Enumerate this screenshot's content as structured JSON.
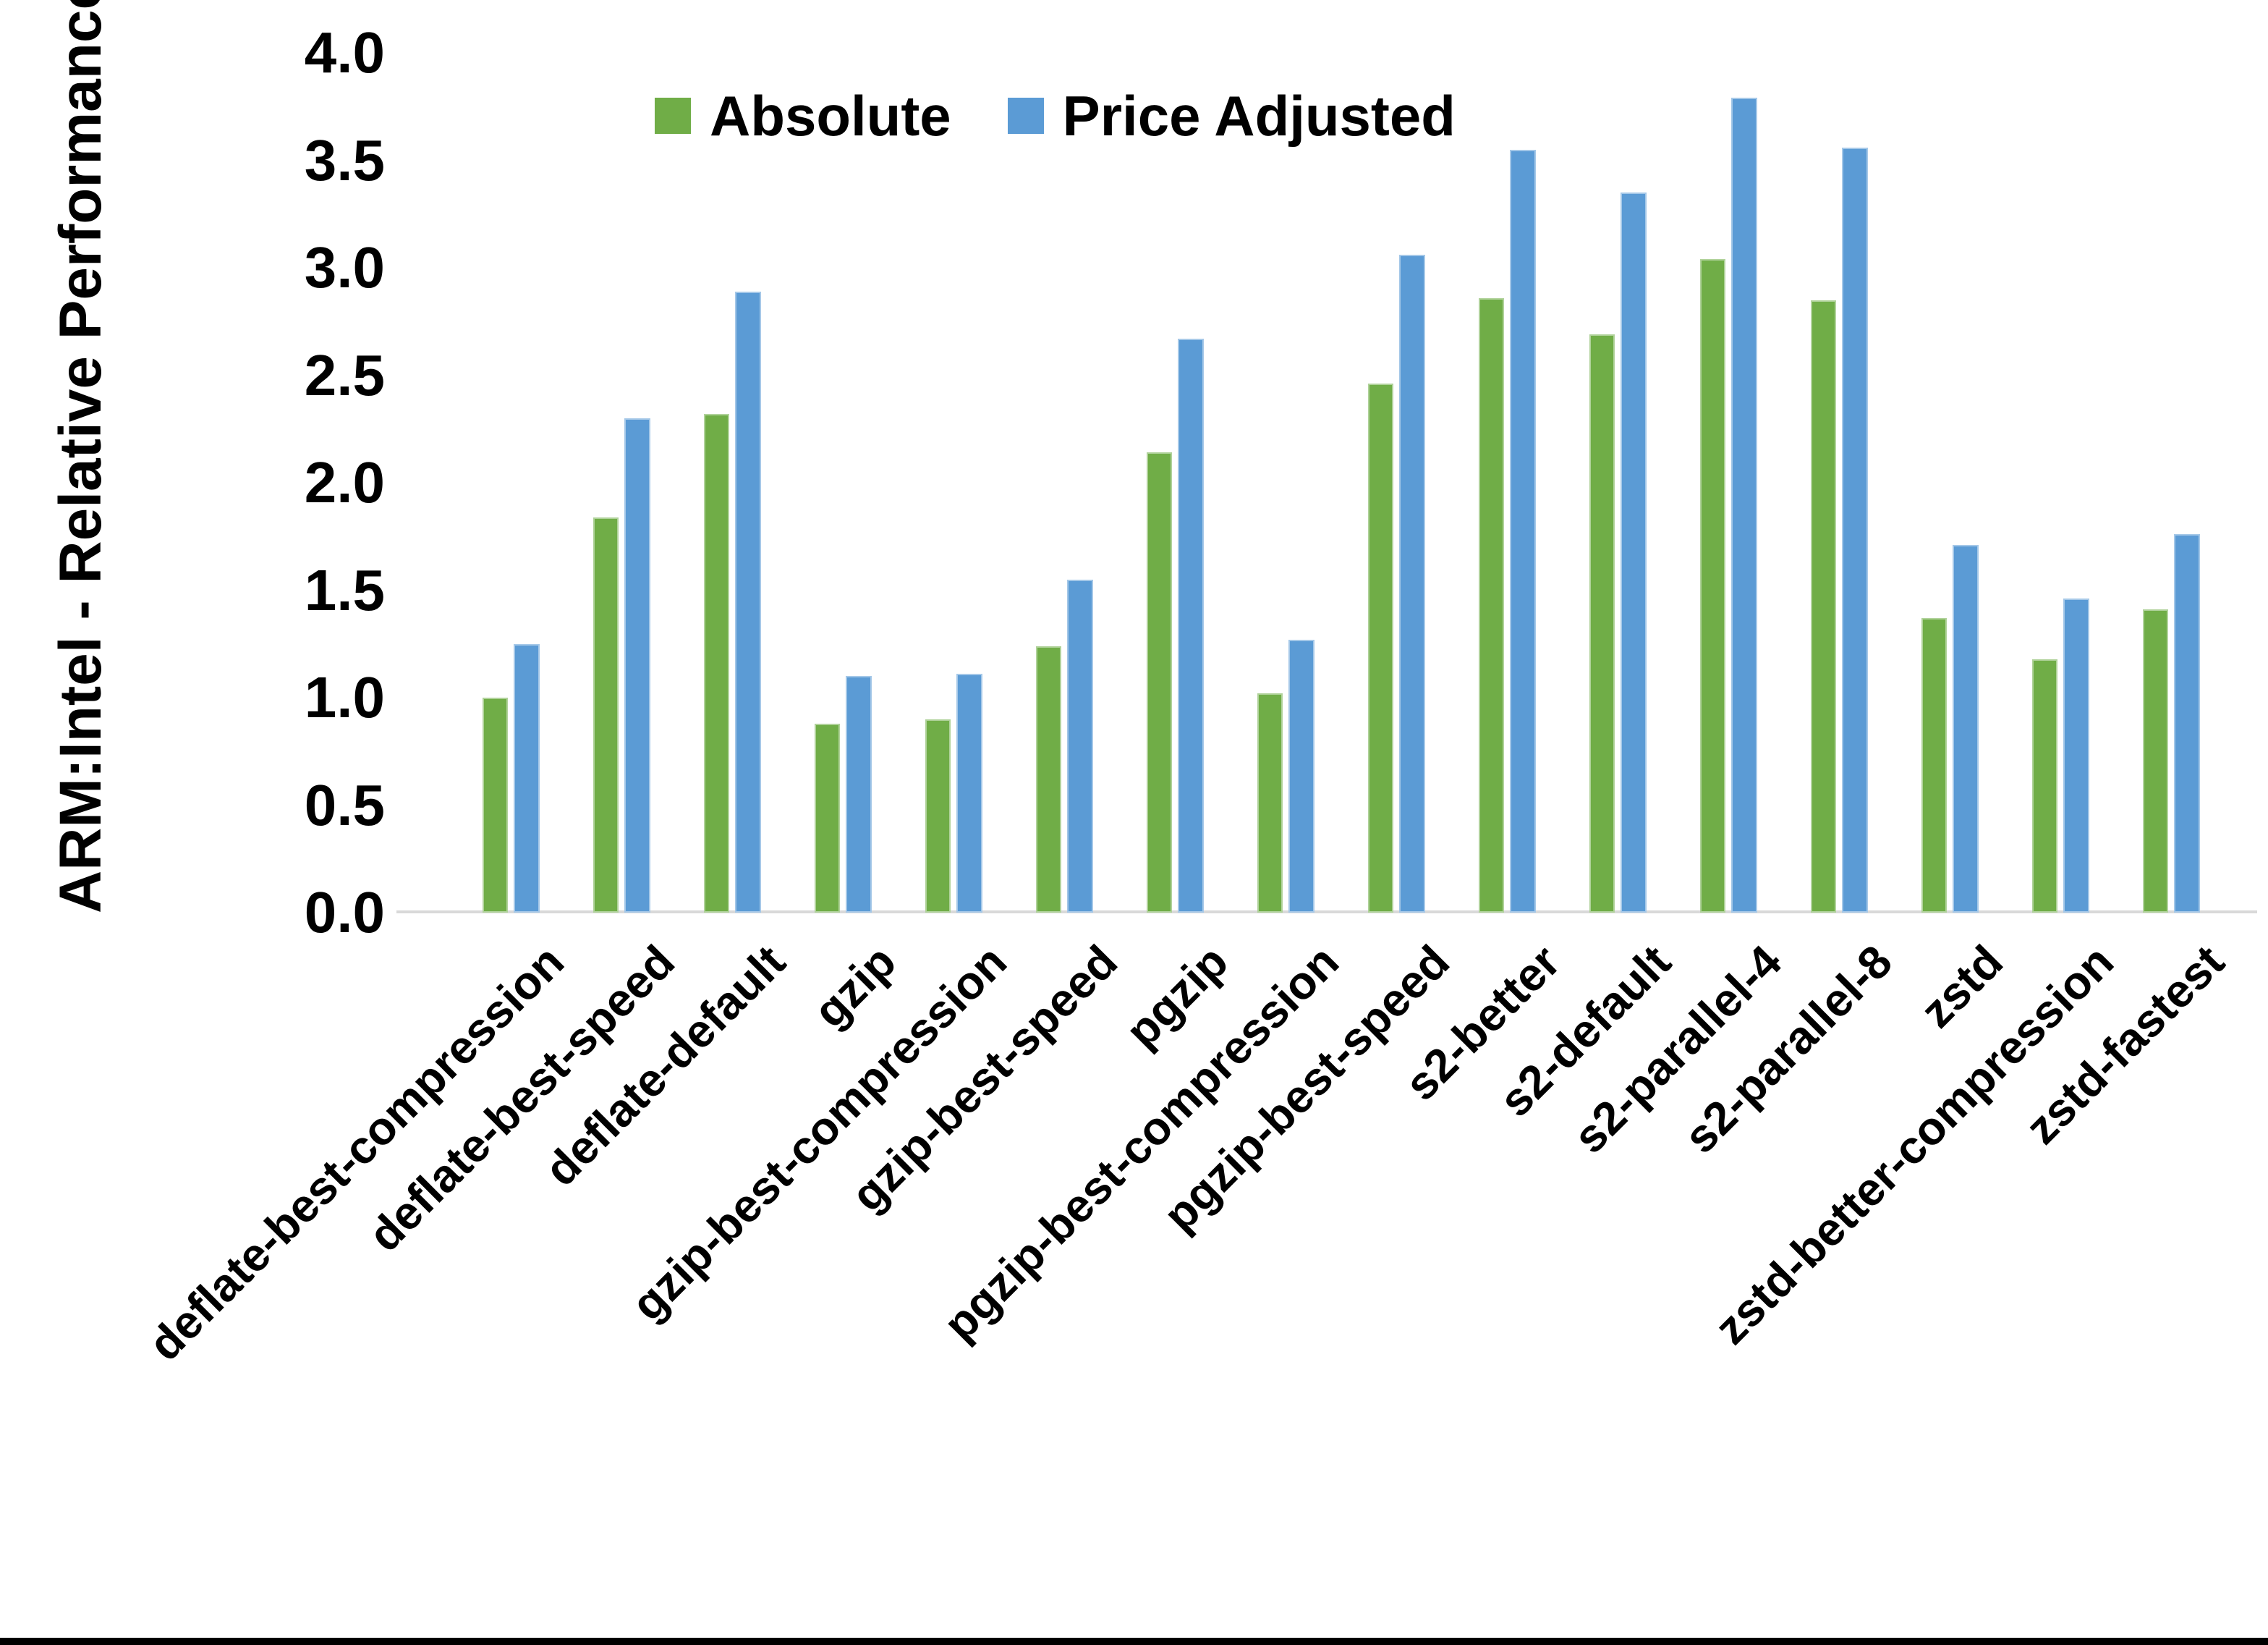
{
  "y_axis": {
    "title": "ARM:Intel - Relative Performance",
    "tick_labels": [
      "0.0",
      "0.5",
      "1.0",
      "1.5",
      "2.0",
      "2.5",
      "3.0",
      "3.5",
      "4.0"
    ]
  },
  "colors": {
    "absolute_green": "#70AD47",
    "price_adjusted_blue": "#5B9BD5",
    "axis_line_gray": "#D9D9D9",
    "text_black": "#000000",
    "bottom_border_black": "#000000"
  },
  "chart_data": {
    "type": "bar",
    "title": "",
    "xlabel": "",
    "ylabel": "ARM:Intel - Relative Performance",
    "ylim": [
      0.0,
      4.0
    ],
    "ytick_step": 0.5,
    "grid": false,
    "legend_position": "top",
    "categories": [
      "deflate-best-compression",
      "deflate-best-speed",
      "deflate-default",
      "gzip",
      "gzip-best-compression",
      "gzip-best-speed",
      "pgzip",
      "pgzip-best-compression",
      "pgzip-best-speed",
      "s2-better",
      "s2-default",
      "s2-parallel-4",
      "s2-parallel-8",
      "zstd",
      "zstd-better-compression",
      "zstd-fastest"
    ],
    "series": [
      {
        "name": "Absolute",
        "color": "#70AD47",
        "values": [
          1.0,
          1.84,
          2.32,
          0.88,
          0.9,
          1.24,
          2.14,
          1.02,
          2.46,
          2.86,
          2.69,
          3.04,
          2.85,
          1.37,
          1.18,
          1.41
        ]
      },
      {
        "name": "Price Adjusted",
        "color": "#5B9BD5",
        "values": [
          1.25,
          2.3,
          2.89,
          1.1,
          1.11,
          1.55,
          2.67,
          1.27,
          3.06,
          3.55,
          3.35,
          3.79,
          3.56,
          1.71,
          1.46,
          1.76
        ]
      }
    ]
  }
}
